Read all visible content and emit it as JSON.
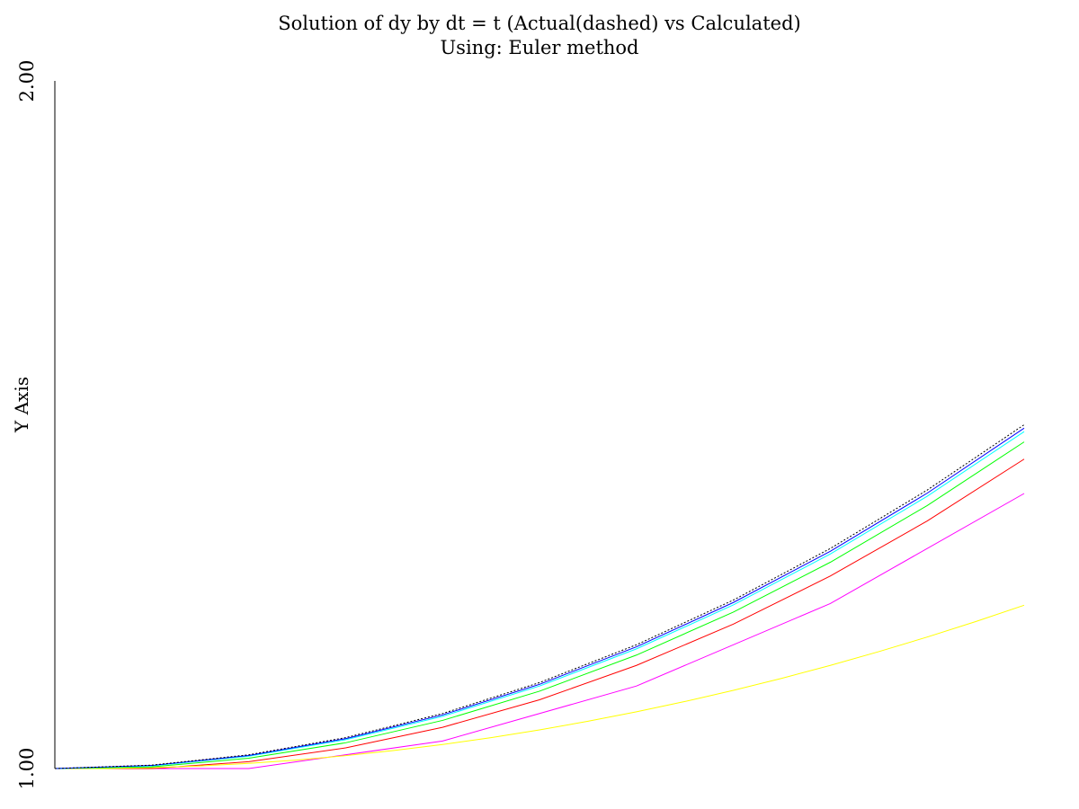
{
  "chart_data": {
    "type": "line",
    "title": "Solution of dy by dt = t (Actual(dashed) vs Calculated)",
    "subtitle": "Using: Euler method",
    "xlabel": "",
    "ylabel": "Y Axis",
    "xlim": [
      0,
      1
    ],
    "ylim": [
      1,
      2
    ],
    "ytick_labels": [
      "1.00",
      "2.00"
    ],
    "grid": false,
    "legend": "none",
    "series": [
      {
        "color": "#ff00ff",
        "dashed": false,
        "x": [
          0,
          0.2,
          0.4,
          0.6,
          0.8,
          1.0
        ],
        "y": [
          1.0,
          1.0,
          1.04,
          1.12,
          1.24,
          1.4
        ]
      },
      {
        "color": "#ff0000",
        "dashed": false,
        "x": [
          0,
          0.1,
          0.2,
          0.3,
          0.4,
          0.5,
          0.6,
          0.7,
          0.8,
          0.9,
          1.0
        ],
        "y": [
          1.0,
          1.0,
          1.01,
          1.03,
          1.06,
          1.1,
          1.15,
          1.21,
          1.28,
          1.36,
          1.45
        ]
      },
      {
        "color": "#ffff00",
        "dashed": false,
        "x": [
          0,
          0.05,
          0.1,
          0.15,
          0.2,
          0.25,
          0.3,
          0.35,
          0.4,
          0.45,
          0.5,
          0.55,
          0.6,
          0.65,
          0.7,
          0.75,
          0.8,
          0.85,
          0.9,
          0.95,
          1.0
        ],
        "y": [
          1.0,
          1.0,
          1.00125,
          1.00375,
          1.0075,
          1.0125,
          1.01875,
          1.02625,
          1.035,
          1.045,
          1.05625,
          1.06875,
          1.0825,
          1.0975,
          1.11375,
          1.13125,
          1.15,
          1.17,
          1.19125,
          1.21375,
          1.2375
        ]
      },
      {
        "color": "#00ff00",
        "dashed": false,
        "x": [
          0,
          0.1,
          0.2,
          0.3,
          0.4,
          0.5,
          0.6,
          0.7,
          0.8,
          0.9,
          1.0
        ],
        "y": [
          1.0,
          1.0025,
          1.015,
          1.0375,
          1.07,
          1.1125,
          1.165,
          1.2275,
          1.3,
          1.3825,
          1.475
        ]
      },
      {
        "color": "#00ffff",
        "dashed": false,
        "x": [
          0,
          0.1,
          0.2,
          0.3,
          0.4,
          0.5,
          0.6,
          0.7,
          0.8,
          0.9,
          1.0
        ],
        "y": [
          1.0,
          1.004,
          1.018,
          1.042,
          1.076,
          1.12,
          1.174,
          1.238,
          1.312,
          1.396,
          1.49
        ]
      },
      {
        "color": "#0000ff",
        "dashed": false,
        "x": [
          0,
          0.1,
          0.2,
          0.3,
          0.4,
          0.5,
          0.6,
          0.7,
          0.8,
          0.9,
          1.0
        ],
        "y": [
          1.0,
          1.0045,
          1.019,
          1.0435,
          1.078,
          1.1225,
          1.177,
          1.2415,
          1.316,
          1.4005,
          1.495
        ]
      },
      {
        "color": "#000000",
        "dashed": true,
        "x": [
          0,
          0.1,
          0.2,
          0.3,
          0.4,
          0.5,
          0.6,
          0.7,
          0.8,
          0.9,
          1.0
        ],
        "y": [
          1.0,
          1.005,
          1.02,
          1.045,
          1.08,
          1.125,
          1.18,
          1.245,
          1.32,
          1.405,
          1.5
        ]
      }
    ]
  }
}
